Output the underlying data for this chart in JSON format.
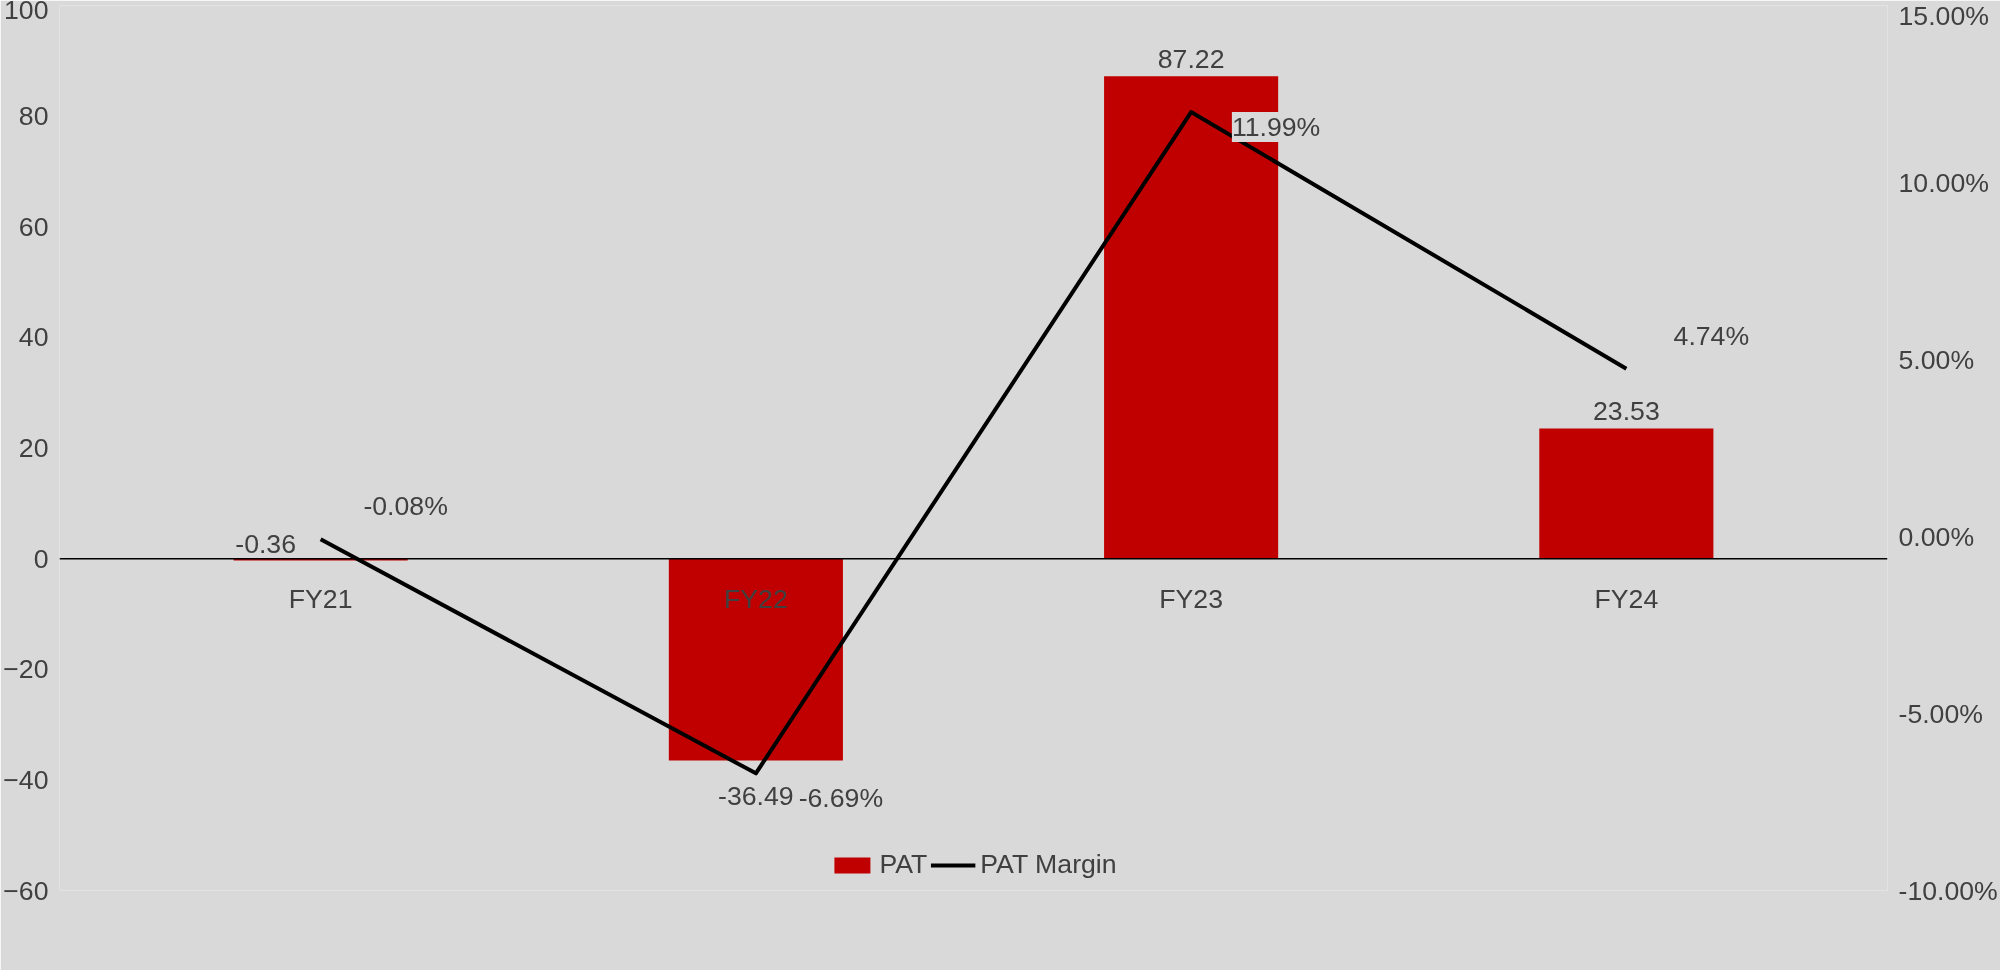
{
  "chart_data": {
    "type": "bar",
    "categories": [
      "FY21",
      "FY22",
      "FY23",
      "FY24"
    ],
    "series": [
      {
        "name": "PAT",
        "color": "#c00000",
        "values": [
          -0.36,
          -36.49,
          87.22,
          23.53
        ],
        "value_labels": [
          "-0.36",
          "-36.49",
          "87.22",
          "23.53"
        ]
      },
      {
        "name": "PAT Margin",
        "type": "line",
        "axis": "y2",
        "color": "#000000",
        "values": [
          -0.08,
          -6.69,
          11.99,
          4.74
        ],
        "value_labels": [
          "-0.08%",
          "-6.69%",
          "11.99%",
          "4.74%"
        ]
      }
    ],
    "ylim": [
      -60,
      100
    ],
    "yticks": [
      -60,
      -40,
      -20,
      0,
      20,
      40,
      60,
      80,
      100
    ],
    "y2lim": [
      -10,
      15
    ],
    "y2ticks": [
      {
        "value": -10,
        "label": "-10.00%"
      },
      {
        "value": -5,
        "label": "-5.00%"
      },
      {
        "value": 0,
        "label": "0.00%"
      },
      {
        "value": 5,
        "label": "5.00%"
      },
      {
        "value": 10,
        "label": "10.00%"
      },
      {
        "value": 15,
        "label": "15.00%"
      }
    ],
    "grid": false,
    "legend": "bottom",
    "marker": "none",
    "line_style": "solid"
  }
}
